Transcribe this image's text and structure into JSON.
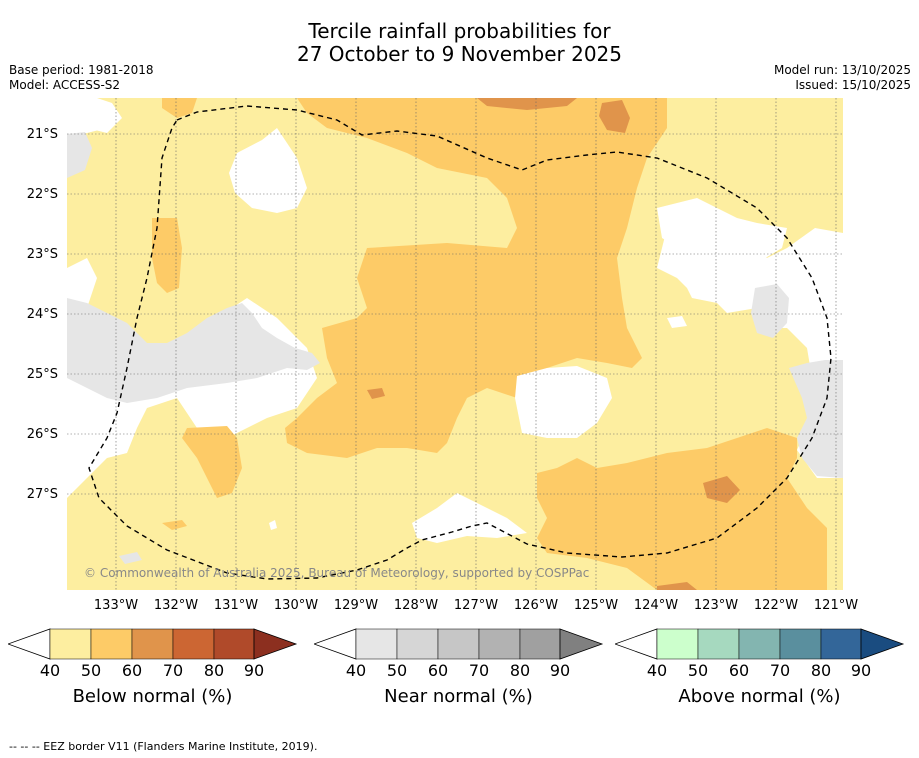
{
  "header": {
    "title_line1": "Tercile rainfall probabilities for",
    "title_line2": "27 October to 9 November 2025",
    "base_period": "Base period: 1981-2018",
    "model": "Model: ACCESS-S2",
    "model_run": "Model run: 13/10/2025",
    "issued": "Issued: 15/10/2025"
  },
  "map": {
    "lat_labels": [
      "21°S",
      "22°S",
      "23°S",
      "24°S",
      "25°S",
      "26°S",
      "27°S"
    ],
    "lon_labels": [
      "133°W",
      "132°W",
      "131°W",
      "130°W",
      "129°W",
      "128°W",
      "127°W",
      "126°W",
      "125°W",
      "124°W",
      "123°W",
      "122°W",
      "121°W"
    ],
    "copyright": "© Commonwealth of Australia 2025, Bureau of Meteorology, supported by COSPPac"
  },
  "colorbars": [
    {
      "label": "Below normal (%)",
      "ticks": [
        "40",
        "50",
        "60",
        "70",
        "80",
        "90"
      ],
      "colors": [
        "#fdeea0",
        "#fdcb67",
        "#e0944b",
        "#cc6633",
        "#b04a2a",
        "#8c2f1f"
      ]
    },
    {
      "label": "Near normal (%)",
      "ticks": [
        "40",
        "50",
        "60",
        "70",
        "80",
        "90"
      ],
      "colors": [
        "#e6e6e6",
        "#d6d6d6",
        "#c6c6c6",
        "#b2b2b2",
        "#a0a0a0",
        "#808080"
      ]
    },
    {
      "label": "Above normal (%)",
      "ticks": [
        "40",
        "50",
        "60",
        "70",
        "80",
        "90"
      ],
      "colors": [
        "#ccffcc",
        "#a6d9bf",
        "#83b5b0",
        "#5a8f9e",
        "#336699",
        "#1a4c80"
      ]
    }
  ],
  "footer": "--  --  -- EEZ border V11 (Flanders Marine Institute, 2019)."
}
